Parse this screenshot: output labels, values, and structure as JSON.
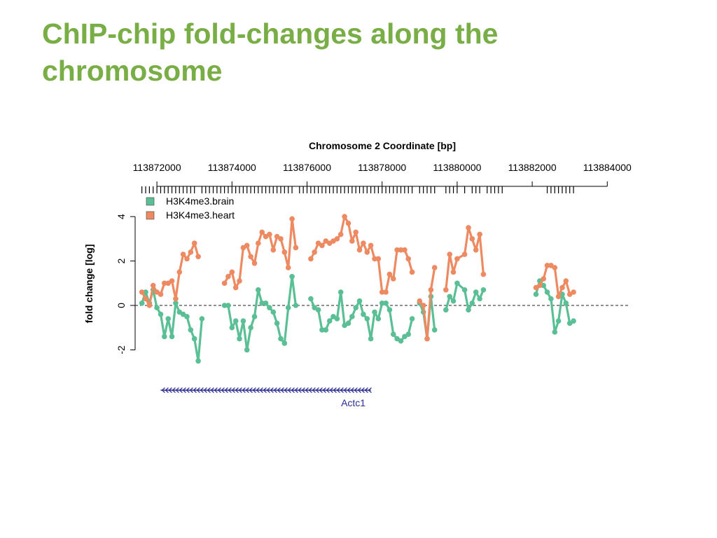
{
  "slide": {
    "title": "ChIP-chip fold-changes along the chromosome"
  },
  "colors": {
    "title": "#79ad45",
    "brain": "#5bbf95",
    "heart": "#ee8a62",
    "gene": "#2b2f8f"
  },
  "chart_data": {
    "type": "line",
    "title": "Chromosome 2 Coordinate [bp]",
    "ylabel": "fold change [log]",
    "xlabel": "",
    "xlim": [
      113871000,
      113884000
    ],
    "ylim": [
      -2.5,
      4
    ],
    "x_ticks": [
      113872000,
      113874000,
      113876000,
      113878000,
      113880000,
      113882000,
      113884000
    ],
    "y_ticks": [
      -2,
      0,
      2,
      4
    ],
    "reference_line": 0,
    "legend": {
      "placement": "top-left"
    },
    "probe_positions": [
      113871600,
      113871700,
      113871800,
      113871900,
      113872000,
      113872100,
      113872200,
      113872300,
      113872400,
      113872500,
      113872600,
      113872700,
      113872800,
      113872900,
      113873000,
      113873200,
      113873300,
      113873400,
      113873500,
      113873600,
      113873700,
      113873800,
      113873900,
      113874000,
      113874100,
      113874200,
      113874300,
      113874400,
      113874500,
      113874600,
      113874700,
      113874800,
      113874900,
      113875000,
      113875100,
      113875200,
      113875300,
      113875400,
      113875500,
      113875600,
      113875800,
      113875900,
      113876000,
      113876100,
      113876200,
      113876300,
      113876400,
      113876500,
      113876600,
      113876700,
      113876800,
      113876900,
      113877000,
      113877100,
      113877200,
      113877300,
      113877400,
      113877500,
      113877600,
      113877700,
      113877800,
      113877900,
      113878000,
      113878100,
      113878200,
      113878300,
      113878400,
      113878500,
      113878600,
      113878700,
      113878800,
      113879000,
      113879100,
      113879200,
      113879300,
      113879400,
      113879700,
      113879800,
      113879900,
      113880000,
      113880200,
      113880400,
      113880500,
      113880600,
      113880800,
      113880900,
      113881000,
      113881100,
      113881200,
      113882400,
      113882500,
      113882600,
      113882700,
      113882800,
      113882900,
      113883000,
      113883100
    ],
    "series": [
      {
        "name": "H3K4me3.brain",
        "segments": [
          [
            [
              113871600,
              0.1
            ],
            [
              113871700,
              0.6
            ],
            [
              113871800,
              0.1
            ],
            [
              113871900,
              0.7
            ],
            [
              113872000,
              -0.1
            ],
            [
              113872100,
              -0.4
            ],
            [
              113872200,
              -1.4
            ],
            [
              113872300,
              -0.6
            ],
            [
              113872400,
              -1.4
            ],
            [
              113872500,
              0.1
            ],
            [
              113872600,
              -0.3
            ],
            [
              113872700,
              -0.4
            ],
            [
              113872800,
              -0.5
            ],
            [
              113872900,
              -1.1
            ],
            [
              113873000,
              -1.5
            ],
            [
              113873100,
              -2.5
            ],
            [
              113873200,
              -0.6
            ]
          ],
          [
            [
              113873800,
              0.0
            ],
            [
              113873900,
              0.0
            ],
            [
              113874000,
              -1.0
            ],
            [
              113874100,
              -0.7
            ],
            [
              113874200,
              -1.5
            ],
            [
              113874300,
              -0.7
            ],
            [
              113874400,
              -2.0
            ],
            [
              113874500,
              -1.0
            ],
            [
              113874600,
              -0.5
            ],
            [
              113874700,
              0.7
            ],
            [
              113874800,
              0.1
            ],
            [
              113874900,
              0.1
            ],
            [
              113875000,
              -0.1
            ],
            [
              113875100,
              -0.3
            ],
            [
              113875200,
              -0.8
            ],
            [
              113875300,
              -1.5
            ],
            [
              113875400,
              -1.7
            ],
            [
              113875500,
              -0.1
            ],
            [
              113875600,
              1.3
            ],
            [
              113875700,
              0.0
            ]
          ],
          [
            [
              113876100,
              0.3
            ],
            [
              113876200,
              -0.1
            ],
            [
              113876300,
              -0.2
            ],
            [
              113876400,
              -1.1
            ],
            [
              113876500,
              -1.1
            ],
            [
              113876600,
              -0.7
            ],
            [
              113876700,
              -0.5
            ],
            [
              113876800,
              -0.6
            ],
            [
              113876900,
              0.6
            ],
            [
              113877000,
              -0.9
            ],
            [
              113877100,
              -0.8
            ],
            [
              113877200,
              -0.5
            ],
            [
              113877300,
              -0.1
            ],
            [
              113877400,
              0.2
            ],
            [
              113877500,
              -0.4
            ],
            [
              113877600,
              -0.6
            ],
            [
              113877700,
              -1.5
            ],
            [
              113877800,
              -0.3
            ],
            [
              113877900,
              -0.6
            ],
            [
              113878000,
              0.1
            ],
            [
              113878100,
              0.1
            ],
            [
              113878200,
              -0.2
            ],
            [
              113878300,
              -1.3
            ],
            [
              113878400,
              -1.5
            ],
            [
              113878500,
              -1.6
            ],
            [
              113878600,
              -1.4
            ],
            [
              113878700,
              -1.3
            ],
            [
              113878800,
              -0.6
            ]
          ],
          [
            [
              113879000,
              0.1
            ],
            [
              113879100,
              -0.3
            ],
            [
              113879200,
              -1.5
            ],
            [
              113879300,
              0.4
            ],
            [
              113879400,
              -1.1
            ]
          ],
          [
            [
              113879700,
              -0.2
            ],
            [
              113879800,
              0.4
            ],
            [
              113879900,
              0.2
            ],
            [
              113880000,
              1.0
            ],
            [
              113880200,
              0.7
            ],
            [
              113880300,
              -0.2
            ],
            [
              113880400,
              0.1
            ],
            [
              113880500,
              0.6
            ],
            [
              113880600,
              0.3
            ],
            [
              113880700,
              0.7
            ]
          ],
          [
            [
              113882100,
              0.5
            ],
            [
              113882200,
              1.1
            ],
            [
              113882300,
              0.9
            ],
            [
              113882400,
              0.6
            ],
            [
              113882500,
              0.3
            ],
            [
              113882600,
              -1.2
            ],
            [
              113882700,
              -0.7
            ],
            [
              113882800,
              0.5
            ],
            [
              113882900,
              0.1
            ],
            [
              113883000,
              -0.8
            ],
            [
              113883100,
              -0.7
            ]
          ]
        ]
      },
      {
        "name": "H3K4me3.heart",
        "segments": [
          [
            [
              113871600,
              0.6
            ],
            [
              113871700,
              0.3
            ],
            [
              113871800,
              0.0
            ],
            [
              113871900,
              0.9
            ],
            [
              113872000,
              0.6
            ],
            [
              113872100,
              0.5
            ],
            [
              113872200,
              1.0
            ],
            [
              113872300,
              1.0
            ],
            [
              113872400,
              1.1
            ],
            [
              113872500,
              0.3
            ],
            [
              113872600,
              1.5
            ],
            [
              113872700,
              2.3
            ],
            [
              113872800,
              2.1
            ],
            [
              113872900,
              2.4
            ],
            [
              113873000,
              2.8
            ],
            [
              113873100,
              2.2
            ]
          ],
          [
            [
              113873800,
              1.0
            ],
            [
              113873900,
              1.3
            ],
            [
              113874000,
              1.5
            ],
            [
              113874100,
              0.8
            ],
            [
              113874200,
              1.1
            ],
            [
              113874300,
              2.6
            ],
            [
              113874400,
              2.7
            ],
            [
              113874500,
              2.2
            ],
            [
              113874600,
              1.9
            ],
            [
              113874700,
              2.8
            ],
            [
              113874800,
              3.3
            ],
            [
              113874900,
              3.1
            ],
            [
              113875000,
              3.2
            ],
            [
              113875100,
              2.5
            ],
            [
              113875200,
              3.1
            ],
            [
              113875300,
              3.0
            ],
            [
              113875400,
              2.4
            ],
            [
              113875500,
              1.7
            ],
            [
              113875600,
              3.9
            ],
            [
              113875700,
              2.6
            ]
          ],
          [
            [
              113876100,
              2.1
            ],
            [
              113876200,
              2.4
            ],
            [
              113876300,
              2.8
            ],
            [
              113876400,
              2.7
            ],
            [
              113876500,
              2.9
            ],
            [
              113876600,
              2.8
            ],
            [
              113876700,
              2.9
            ],
            [
              113876800,
              3.0
            ],
            [
              113876900,
              3.2
            ],
            [
              113877000,
              4.0
            ],
            [
              113877100,
              3.7
            ],
            [
              113877200,
              2.9
            ],
            [
              113877300,
              3.3
            ],
            [
              113877400,
              2.5
            ],
            [
              113877500,
              2.8
            ],
            [
              113877600,
              2.4
            ],
            [
              113877700,
              2.7
            ],
            [
              113877800,
              2.1
            ],
            [
              113877900,
              2.1
            ],
            [
              113878000,
              0.6
            ],
            [
              113878100,
              0.6
            ],
            [
              113878200,
              1.4
            ],
            [
              113878300,
              1.2
            ],
            [
              113878400,
              2.5
            ],
            [
              113878500,
              2.5
            ],
            [
              113878600,
              2.5
            ],
            [
              113878700,
              2.1
            ],
            [
              113878800,
              1.5
            ]
          ],
          [
            [
              113879000,
              0.2
            ],
            [
              113879100,
              0.0
            ],
            [
              113879200,
              -1.5
            ],
            [
              113879300,
              0.7
            ],
            [
              113879400,
              1.7
            ]
          ],
          [
            [
              113879700,
              0.7
            ],
            [
              113879800,
              2.3
            ],
            [
              113879900,
              1.5
            ],
            [
              113880000,
              2.1
            ],
            [
              113880200,
              2.3
            ],
            [
              113880300,
              3.5
            ],
            [
              113880400,
              3.0
            ],
            [
              113880500,
              2.5
            ],
            [
              113880600,
              3.2
            ],
            [
              113880700,
              1.4
            ]
          ],
          [
            [
              113882100,
              0.8
            ],
            [
              113882200,
              0.9
            ],
            [
              113882300,
              1.2
            ],
            [
              113882400,
              1.8
            ],
            [
              113882500,
              1.8
            ],
            [
              113882600,
              1.7
            ],
            [
              113882700,
              0.4
            ],
            [
              113882800,
              0.8
            ],
            [
              113882900,
              1.1
            ],
            [
              113883000,
              0.5
            ],
            [
              113883100,
              0.6
            ]
          ]
        ]
      }
    ],
    "gene": {
      "name": "Actc1",
      "start": 113872100,
      "end": 113877700,
      "strand": "-"
    }
  }
}
